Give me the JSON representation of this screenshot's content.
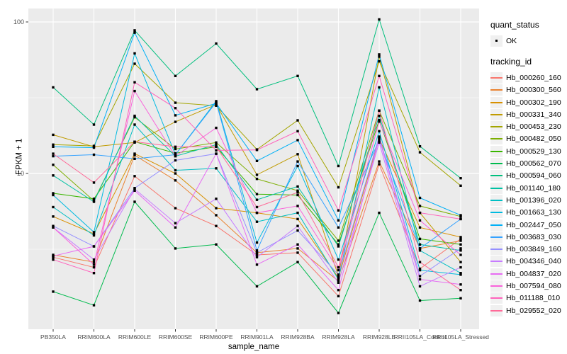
{
  "figure": {
    "background": "#FFFFFF",
    "panel_background": "#EBEBEB",
    "gridline_color": "#FFFFFF",
    "tick_mark_color": "#333333",
    "tick_label_color": "#4D4D4D",
    "axis_title_color": "#000000",
    "legend_key_background": "#F0F0F0",
    "point_color": "#000000"
  },
  "chart_data": {
    "type": "line",
    "title": "",
    "xlabel": "sample_name",
    "ylabel": "FPKM + 1",
    "y_scale": "log10",
    "y_ticks": [
      100,
      10
    ],
    "y_tick_labels": [
      "100",
      "10"
    ],
    "y_minor_breaks": [
      31.623,
      3.1623
    ],
    "ylim": [
      0.95,
      123
    ],
    "legend_position": "right",
    "grid": true,
    "categories": [
      "PB350LA",
      "RRIM600LA",
      "RRIM600LE",
      "RRIM600SE",
      "RRIM600PE",
      "RRIM901LA",
      "RRIM928BA",
      "RRIM928LA",
      "RRIM928LE",
      "RRII105LA_Control",
      "RRII105LA_Stressed"
    ],
    "legend": {
      "quant_status_title": "quant_status",
      "quant_status_items": [
        {
          "label": "OK"
        }
      ],
      "tracking_id_title": "tracking_id"
    },
    "series": [
      {
        "name": "Hb_000260_160",
        "color": "#F8766D",
        "values": [
          2.8,
          2.4,
          9.6,
          5.9,
          4.5,
          2.9,
          3.0,
          1.55,
          11.5,
          2.35,
          3.7
        ]
      },
      {
        "name": "Hb_000300_560",
        "color": "#EA8331",
        "values": [
          2.9,
          2.6,
          13.2,
          9.0,
          5.3,
          3.0,
          3.2,
          1.95,
          12,
          3.2,
          3.6
        ]
      },
      {
        "name": "Hb_000302_190",
        "color": "#D89000",
        "values": [
          5.2,
          4.0,
          13.5,
          10.0,
          5.9,
          5.5,
          5.0,
          2.05,
          17,
          4.4,
          3.8
        ]
      },
      {
        "name": "Hb_000331_340",
        "color": "#C09B00",
        "values": [
          18,
          15,
          16,
          21.9,
          28.5,
          9.8,
          13.4,
          2.1,
          59,
          5.5,
          2.6
        ]
      },
      {
        "name": "Hb_000453_230",
        "color": "#A3A500",
        "values": [
          15.5,
          15.2,
          53,
          29.3,
          28,
          14.4,
          22.4,
          8.1,
          55,
          13.8,
          8.3
        ]
      },
      {
        "name": "Hb_000482_050",
        "color": "#7CAE00",
        "values": [
          11.4,
          6.6,
          23.5,
          14.5,
          16,
          9.2,
          7.7,
          3.6,
          26,
          6.1,
          5.2
        ]
      },
      {
        "name": "Hb_000529_130",
        "color": "#39B600",
        "values": [
          7.4,
          6.8,
          16.2,
          13.6,
          15,
          7.3,
          7.2,
          3.4,
          22.5,
          3.7,
          3.4
        ]
      },
      {
        "name": "Hb_000562_070",
        "color": "#00BB4E",
        "values": [
          1.66,
          1.35,
          6.5,
          3.2,
          3.4,
          1.8,
          2.6,
          1.2,
          5.5,
          1.45,
          1.5
        ]
      },
      {
        "name": "Hb_000594_060",
        "color": "#00BF7D",
        "values": [
          37,
          21,
          88,
          44,
          72,
          36,
          44,
          11.2,
          104,
          15.1,
          9.3
        ]
      },
      {
        "name": "Hb_001140_180",
        "color": "#00C1A3",
        "values": [
          9.7,
          6.5,
          24,
          13.0,
          15.5,
          6.7,
          8.2,
          3.3,
          24,
          3.4,
          3.1
        ]
      },
      {
        "name": "Hb_001396_020",
        "color": "#00BFC4",
        "values": [
          6.0,
          3.9,
          21,
          10.5,
          10.8,
          4.8,
          5.5,
          2.0,
          37,
          3.1,
          2.2
        ]
      },
      {
        "name": "Hb_001663_130",
        "color": "#00BAE0",
        "values": [
          7.2,
          4.1,
          62,
          13.3,
          30,
          3.5,
          11.2,
          2.7,
          19,
          2.3,
          2.15
        ]
      },
      {
        "name": "Hb_002447_050",
        "color": "#00B0F6",
        "values": [
          15,
          14.8,
          85,
          24.2,
          29,
          12.1,
          16.6,
          4.9,
          61,
          6.9,
          5.3
        ]
      },
      {
        "name": "Hb_003683_030",
        "color": "#35A2FF",
        "values": [
          13,
          13.3,
          12.5,
          13.3,
          29.5,
          3.1,
          12.0,
          4.4,
          16.5,
          3.2,
          5.0
        ]
      },
      {
        "name": "Hb_003849_160",
        "color": "#9590FF",
        "values": [
          4.5,
          3.3,
          8.0,
          12.2,
          13.5,
          3.0,
          4.2,
          2.15,
          17.5,
          2.1,
          3.2
        ]
      },
      {
        "name": "Hb_004346_040",
        "color": "#C77CFF",
        "values": [
          4.4,
          2.7,
          7.9,
          4.7,
          6.8,
          2.8,
          4.5,
          1.9,
          16,
          1.8,
          2.4
        ]
      },
      {
        "name": "Hb_004837_020",
        "color": "#E76BF3",
        "values": [
          2.85,
          3.3,
          7.7,
          4.4,
          13.5,
          2.5,
          3.4,
          1.7,
          17,
          2.0,
          1.85
        ]
      },
      {
        "name": "Hb_007594_080",
        "color": "#FA62DB",
        "values": [
          4.4,
          2.5,
          35,
          13.0,
          20,
          5.5,
          6.1,
          2.3,
          22,
          4.9,
          2.9
        ]
      },
      {
        "name": "Hb_011188_010",
        "color": "#FF62BC",
        "values": [
          2.7,
          2.2,
          40,
          27,
          14.2,
          14.3,
          19,
          5.7,
          44,
          5.5,
          5.0
        ]
      },
      {
        "name": "Hb_029552_020",
        "color": "#FF6A98",
        "values": [
          13.5,
          8.7,
          16.2,
          15.0,
          15.0,
          6.0,
          7.5,
          2.4,
          26,
          2.6,
          1.7
        ]
      }
    ]
  }
}
